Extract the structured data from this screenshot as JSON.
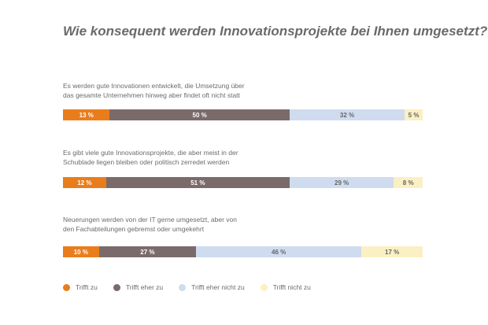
{
  "chart_data": {
    "type": "bar",
    "orientation": "horizontal",
    "stacked": true,
    "title": "Wie konsequent werden Innovationsprojekte bei Ihnen umgesetzt?",
    "categories": [
      [
        "Es werden gute Innovationen entwickelt, die Umsetzung über",
        "das gesamte Unternehmen hinweg aber findet oft nicht statt"
      ],
      [
        "Es gibt viele gute Innovationsprojekte, die aber meist in der",
        "Schublade liegen bleiben oder politisch zerredet werden"
      ],
      [
        "Neuerungen werden von der IT gerne umgesetzt, aber von",
        "den Fachabteilungen gebremst oder umgekehrt"
      ]
    ],
    "series": [
      {
        "name": "Trifft zu",
        "values": [
          13,
          12,
          10
        ],
        "color": "#ea7d1b",
        "text_color": "#ffffff"
      },
      {
        "name": "Trifft eher zu",
        "values": [
          50,
          51,
          27
        ],
        "color": "#7a6b6a",
        "text_color": "#ffffff"
      },
      {
        "name": "Trifft eher nicht zu",
        "values": [
          32,
          29,
          46
        ],
        "color": "#cfdcef",
        "text_color": "#666666"
      },
      {
        "name": "Trifft nicht zu",
        "values": [
          5,
          8,
          17
        ],
        "color": "#fbf0c3",
        "text_color": "#666666"
      }
    ],
    "value_suffix": " %",
    "xlim": [
      0,
      100
    ],
    "legend_position": "bottom-left",
    "grid": false
  }
}
